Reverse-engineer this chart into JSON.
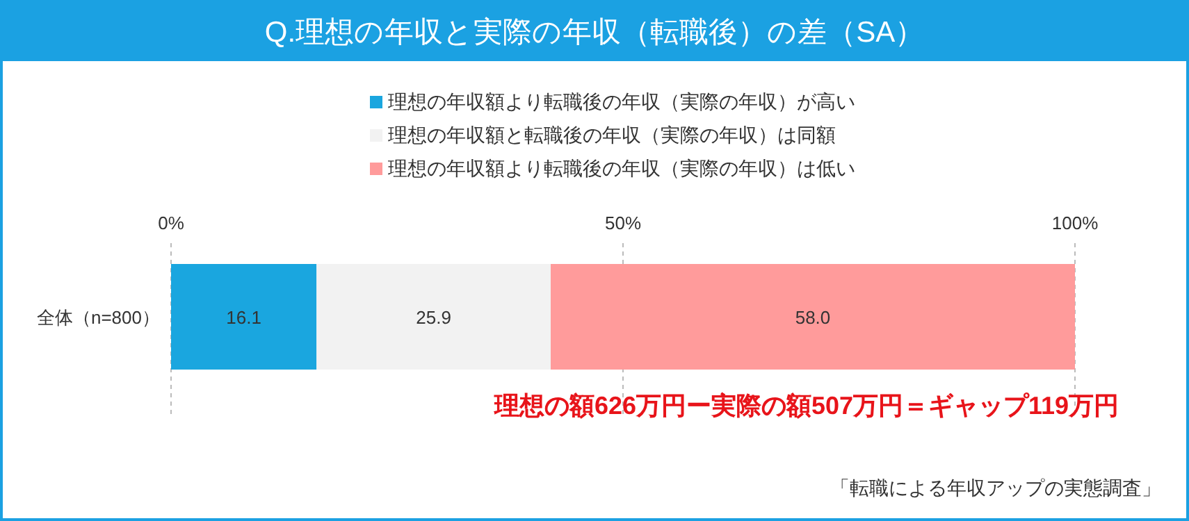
{
  "chart_data": {
    "type": "bar",
    "orientation": "horizontal",
    "stacked": true,
    "title": "Q.理想の年収と実際の年収（転職後）の差（SA）",
    "categories": [
      "全体（n=800）"
    ],
    "series": [
      {
        "name": "理想の年収額より転職後の年収（実際の年収）が高い",
        "color": "#1aa6df",
        "values": [
          16.1
        ],
        "value_labels": [
          "16.1"
        ]
      },
      {
        "name": "理想の年収額と転職後の年収（実際の年収）は同額",
        "color": "#f2f2f2",
        "values": [
          25.9
        ],
        "value_labels": [
          "25.9"
        ]
      },
      {
        "name": "理想の年収額より転職後の年収（実際の年収）は低い",
        "color": "#ff9b9b",
        "values": [
          58.0
        ],
        "value_labels": [
          "58.0"
        ]
      }
    ],
    "xlim": [
      0,
      100
    ],
    "xticks": [
      {
        "value": 0,
        "label": "0%"
      },
      {
        "value": 50,
        "label": "50%"
      },
      {
        "value": 100,
        "label": "100%"
      }
    ],
    "grid": "x",
    "legend": "top",
    "annotations": [
      "理想の額626万円ー実際の額507万円＝ギャップ119万円",
      "「転職による年収アップの実態調査」"
    ]
  }
}
